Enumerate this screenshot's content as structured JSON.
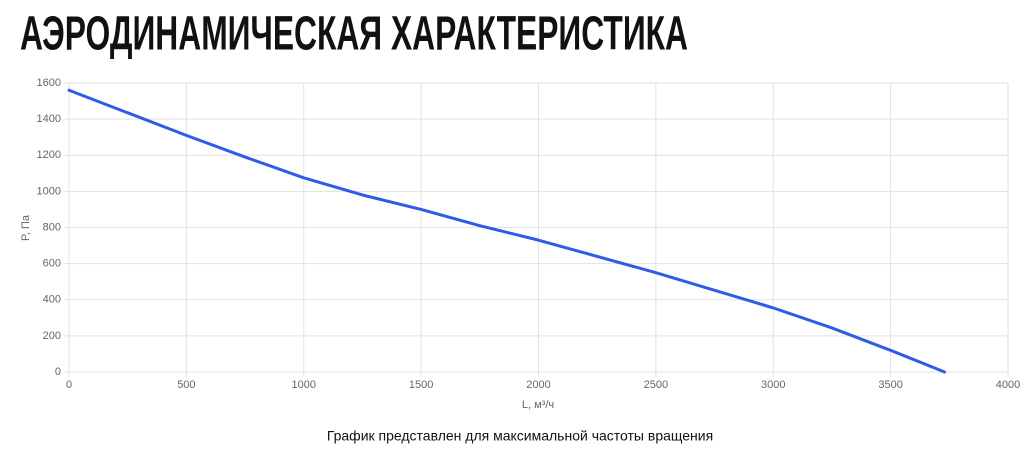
{
  "chart_data": {
    "type": "line",
    "title": "АЭРОДИНАМИЧЕСКАЯ ХАРАКТЕРИСТИКА",
    "x_label": "L, м³/ч",
    "y_label": "P, Па",
    "caption": "График представлен для максимальной частоты вращения",
    "x": [
      0,
      500,
      750,
      1000,
      1250,
      1500,
      1750,
      2000,
      2500,
      3000,
      3250,
      3500,
      3730
    ],
    "series": [
      {
        "color": "#2f5be6",
        "values": [
          1560,
          1310,
          1190,
          1075,
          980,
          900,
          810,
          730,
          550,
          355,
          244,
          120,
          0
        ]
      }
    ],
    "xlim": [
      0,
      4000
    ],
    "xticks": [
      0,
      500,
      1000,
      1500,
      2000,
      2500,
      3000,
      3500,
      4000
    ],
    "ylim": [
      0,
      1600
    ],
    "yticks": [
      0,
      200,
      400,
      600,
      800,
      1000,
      1200,
      1400,
      1600
    ],
    "grid": true
  }
}
